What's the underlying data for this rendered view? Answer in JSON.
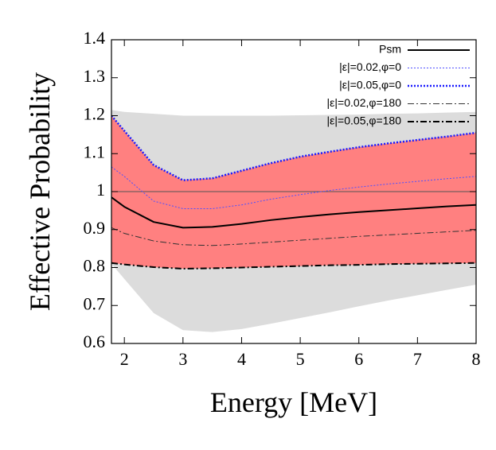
{
  "chart_data": {
    "type": "line",
    "xlabel": "Energy [MeV]",
    "ylabel": "Effective Probability",
    "xlim": [
      1.78,
      8
    ],
    "ylim": [
      0.6,
      1.4
    ],
    "xticks": [
      2,
      3,
      4,
      5,
      6,
      7,
      8
    ],
    "yticks": [
      0.6,
      0.7,
      0.8,
      0.9,
      1,
      1.1,
      1.2,
      1.3,
      1.4
    ],
    "reference_line": 1,
    "legend": "top-right",
    "x": [
      1.78,
      2,
      2.5,
      3,
      3.5,
      4,
      4.5,
      5,
      5.5,
      6,
      6.5,
      7,
      7.5,
      8
    ],
    "bands": [
      {
        "color": "#dcdcdc",
        "upper": [
          1.215,
          1.21,
          1.205,
          1.2,
          1.2,
          1.2,
          1.2,
          1.201,
          1.202,
          1.203,
          1.205,
          1.206,
          1.208,
          1.21
        ],
        "lower": [
          0.81,
          0.77,
          0.68,
          0.635,
          0.63,
          0.638,
          0.652,
          0.667,
          0.682,
          0.698,
          0.713,
          0.727,
          0.741,
          0.755
        ]
      },
      {
        "color": "#ff8080",
        "upper": [
          1.2,
          1.16,
          1.07,
          1.03,
          1.035,
          1.055,
          1.075,
          1.092,
          1.105,
          1.117,
          1.127,
          1.136,
          1.145,
          1.155
        ],
        "lower": [
          0.812,
          0.808,
          0.801,
          0.797,
          0.798,
          0.8,
          0.802,
          0.804,
          0.806,
          0.807,
          0.809,
          0.81,
          0.811,
          0.812
        ]
      }
    ],
    "series": [
      {
        "name": "Psm",
        "color": "#000000",
        "width": 2,
        "dash": "none",
        "values": [
          0.985,
          0.96,
          0.92,
          0.905,
          0.907,
          0.915,
          0.925,
          0.933,
          0.94,
          0.946,
          0.951,
          0.956,
          0.961,
          0.965
        ]
      },
      {
        "name": "|ε|=0.02,φ=0",
        "color": "#5050ff",
        "width": 1,
        "dash": "2 2",
        "values": [
          1.065,
          1.04,
          0.975,
          0.955,
          0.955,
          0.965,
          0.98,
          0.992,
          1.003,
          1.012,
          1.02,
          1.027,
          1.034,
          1.04
        ]
      },
      {
        "name": "|ε|=0.05,φ=0",
        "color": "#1a1aff",
        "width": 2.5,
        "dash": "2 2",
        "values": [
          1.2,
          1.16,
          1.07,
          1.03,
          1.035,
          1.055,
          1.075,
          1.092,
          1.105,
          1.117,
          1.127,
          1.136,
          1.145,
          1.155
        ]
      },
      {
        "name": "|ε|=0.02,φ=180",
        "color": "#333333",
        "width": 1,
        "dash": "8 3 2 3",
        "values": [
          0.905,
          0.89,
          0.87,
          0.86,
          0.858,
          0.862,
          0.867,
          0.872,
          0.877,
          0.882,
          0.886,
          0.89,
          0.894,
          0.898
        ]
      },
      {
        "name": "|ε|=0.05,φ=180",
        "color": "#000000",
        "width": 2,
        "dash": "8 3 2 3",
        "values": [
          0.812,
          0.808,
          0.801,
          0.797,
          0.798,
          0.8,
          0.802,
          0.804,
          0.806,
          0.807,
          0.809,
          0.81,
          0.811,
          0.812
        ]
      }
    ]
  }
}
